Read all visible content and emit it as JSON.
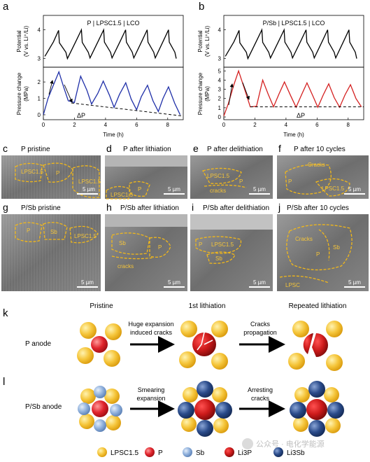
{
  "panel_labels": {
    "a": "a",
    "b": "b",
    "c": "c",
    "d": "d",
    "e": "e",
    "f": "f",
    "g": "g",
    "h": "h",
    "i": "i",
    "j": "j",
    "k": "k",
    "l": "l"
  },
  "chart_data": [
    {
      "type": "line",
      "panel": "a",
      "title": "P | LPSC1.5 | LCO",
      "xlabel": "Time (h)",
      "top_ylabel": [
        "Potential",
        "(V vs. Li⁺/Li)"
      ],
      "bottom_ylabel": [
        "Pressure change",
        "(MPa)"
      ],
      "xlim": [
        0,
        9
      ],
      "xticks": [
        0,
        2,
        4,
        6,
        8
      ],
      "potential_ylim": [
        2.7,
        4.5
      ],
      "potential_yticks": [
        3,
        4
      ],
      "pressure_ylim": [
        -0.3,
        2.9
      ],
      "pressure_yticks": [
        0,
        1,
        2
      ],
      "annotation": "ΔP",
      "series": [
        {
          "color": "#000000",
          "x": [
            0.1,
            0.65,
            0.98,
            1.03,
            1.45,
            1.55,
            2.11,
            2.45,
            2.5,
            2.89,
            3.0,
            3.55,
            3.88,
            3.93,
            4.32,
            4.42,
            4.97,
            5.29,
            5.34,
            5.72,
            5.82,
            6.36,
            6.68,
            6.73,
            7.1,
            7.2,
            7.73,
            8.05,
            8.1,
            8.46,
            8.55
          ],
          "y": [
            3.08,
            3.58,
            3.98,
            3.55,
            3.22,
            3.0,
            3.62,
            4.0,
            3.56,
            3.22,
            3.02,
            3.63,
            4.0,
            3.57,
            3.22,
            3.02,
            3.63,
            4.0,
            3.57,
            3.22,
            3.02,
            3.63,
            4.0,
            3.57,
            3.22,
            3.02,
            3.63,
            4.0,
            3.57,
            3.22,
            3.0
          ]
        },
        {
          "color": "#1f2fa8",
          "x": [
            0.0,
            0.3,
            0.6,
            1.0,
            1.3,
            1.6,
            2.0,
            2.4,
            2.8,
            3.1,
            3.5,
            3.85,
            4.25,
            4.55,
            4.9,
            5.3,
            5.65,
            6.0,
            6.3,
            6.7,
            7.05,
            7.4,
            7.7,
            8.05,
            8.45,
            8.8
          ],
          "y": [
            0.0,
            1.0,
            1.7,
            2.62,
            1.7,
            0.85,
            0.75,
            2.35,
            1.5,
            0.65,
            1.3,
            2.05,
            1.2,
            0.45,
            1.25,
            1.95,
            0.95,
            0.3,
            1.1,
            1.8,
            0.85,
            0.2,
            1.0,
            1.7,
            0.7,
            0.0
          ]
        },
        {
          "color": "#000000",
          "dashed": true,
          "x": [
            1.8,
            9.0
          ],
          "y": [
            0.72,
            -0.08
          ]
        }
      ]
    },
    {
      "type": "line",
      "panel": "b",
      "title": "P/Sb | LPSC1.5 | LCO",
      "xlabel": "Time (h)",
      "top_ylabel": [
        "Potential",
        "(V vs. Li⁺/Li)"
      ],
      "bottom_ylabel": [
        "Pressure change",
        "(MPa)"
      ],
      "xlim": [
        0,
        9
      ],
      "xticks": [
        0,
        2,
        4,
        6,
        8
      ],
      "potential_ylim": [
        2.7,
        4.5
      ],
      "potential_yticks": [
        3,
        4
      ],
      "pressure_ylim": [
        -0.3,
        5.4
      ],
      "pressure_yticks": [
        0,
        1,
        2,
        3,
        4,
        5
      ],
      "annotation": "ΔP",
      "series": [
        {
          "color": "#000000",
          "x": [
            0.1,
            0.65,
            0.98,
            1.03,
            1.45,
            1.55,
            2.11,
            2.45,
            2.5,
            2.89,
            3.0,
            3.55,
            3.88,
            3.93,
            4.32,
            4.42,
            4.97,
            5.29,
            5.34,
            5.72,
            5.82,
            6.36,
            6.68,
            6.73,
            7.1,
            7.2,
            7.73,
            8.05,
            8.1,
            8.46,
            8.55
          ],
          "y": [
            3.08,
            3.58,
            3.98,
            3.55,
            3.22,
            3.0,
            3.62,
            4.0,
            3.56,
            3.22,
            3.02,
            3.63,
            4.0,
            3.57,
            3.22,
            3.02,
            3.63,
            4.0,
            3.57,
            3.22,
            3.02,
            3.63,
            4.0,
            3.57,
            3.22,
            3.02,
            3.63,
            4.0,
            3.57,
            3.22,
            3.0
          ]
        },
        {
          "color": "#d42020",
          "x": [
            0.0,
            0.3,
            0.65,
            0.95,
            1.3,
            1.7,
            2.1,
            2.5,
            2.85,
            3.2,
            3.55,
            3.9,
            4.3,
            4.65,
            5.0,
            5.35,
            5.75,
            6.05,
            6.4,
            6.75,
            7.1,
            7.45,
            7.8,
            8.15,
            8.5,
            8.85
          ],
          "y": [
            0.1,
            1.5,
            3.5,
            5.0,
            3.2,
            1.1,
            1.15,
            4.0,
            2.5,
            1.1,
            2.5,
            3.8,
            2.3,
            1.05,
            2.4,
            3.7,
            2.2,
            1.05,
            2.4,
            3.6,
            2.1,
            1.05,
            2.4,
            3.5,
            2.0,
            1.1
          ]
        },
        {
          "color": "#000000",
          "dashed": true,
          "x": [
            1.7,
            9.0
          ],
          "y": [
            1.1,
            1.1
          ]
        }
      ]
    }
  ],
  "sem_panels": [
    {
      "letter": "c",
      "title": "P pristine",
      "labels": [
        "LPSC1.5",
        "P",
        "LPSC1.5"
      ],
      "scale": "5 µm"
    },
    {
      "letter": "d",
      "title": "P after lithiation",
      "labels": [
        "P",
        "LPSC1.5"
      ],
      "scale": "5 µm"
    },
    {
      "letter": "e",
      "title": "P after delithiation",
      "labels": [
        "LPSC1.5",
        "P",
        "cracks"
      ],
      "scale": "5 µm"
    },
    {
      "letter": "f",
      "title": "P after 10 cycles",
      "labels": [
        "Cracks",
        "P",
        "LPSC1.5"
      ],
      "scale": "5 µm"
    },
    {
      "letter": "g",
      "title": "P/Sb pristine",
      "labels": [
        "P",
        "Sb",
        "LPSC1.5"
      ],
      "scale": "5 µm"
    },
    {
      "letter": "h",
      "title": "P/Sb after lithiation",
      "labels": [
        "Sb",
        "P",
        "cracks"
      ],
      "scale": "5 µm"
    },
    {
      "letter": "i",
      "title": "P/Sb after delithiation",
      "labels": [
        "P",
        "LPSC1.5",
        "Sb"
      ],
      "scale": "5 µm"
    },
    {
      "letter": "j",
      "title": "P/Sb after 10 cycles",
      "labels": [
        "Cracks",
        "Sb",
        "P",
        "LPSC"
      ],
      "scale": "5 µm"
    }
  ],
  "schematic": {
    "col_pristine": "Pristine",
    "col_first": "1st lithiation",
    "col_repeated": "Repeated lithiation",
    "row_k": "P anode",
    "row_l": "P/Sb anode",
    "arrow_k1": [
      "Huge expansion",
      "induced cracks"
    ],
    "arrow_k2": [
      "Cracks",
      "propagation"
    ],
    "arrow_l1": [
      "Smearing",
      "expansion"
    ],
    "arrow_l2": [
      "Arresting",
      "cracks"
    ]
  },
  "legend": [
    {
      "label": "LPSC1.5",
      "color": "#f5c53a"
    },
    {
      "label": "P",
      "color": "#e0242c"
    },
    {
      "label": "Sb",
      "color": "#8fb0dc"
    },
    {
      "label": "Li3P",
      "color": "#cc1a1a"
    },
    {
      "label": "Li3Sb",
      "color": "#2a4b8a"
    }
  ],
  "watermark": "公众号 · 电化学能源"
}
